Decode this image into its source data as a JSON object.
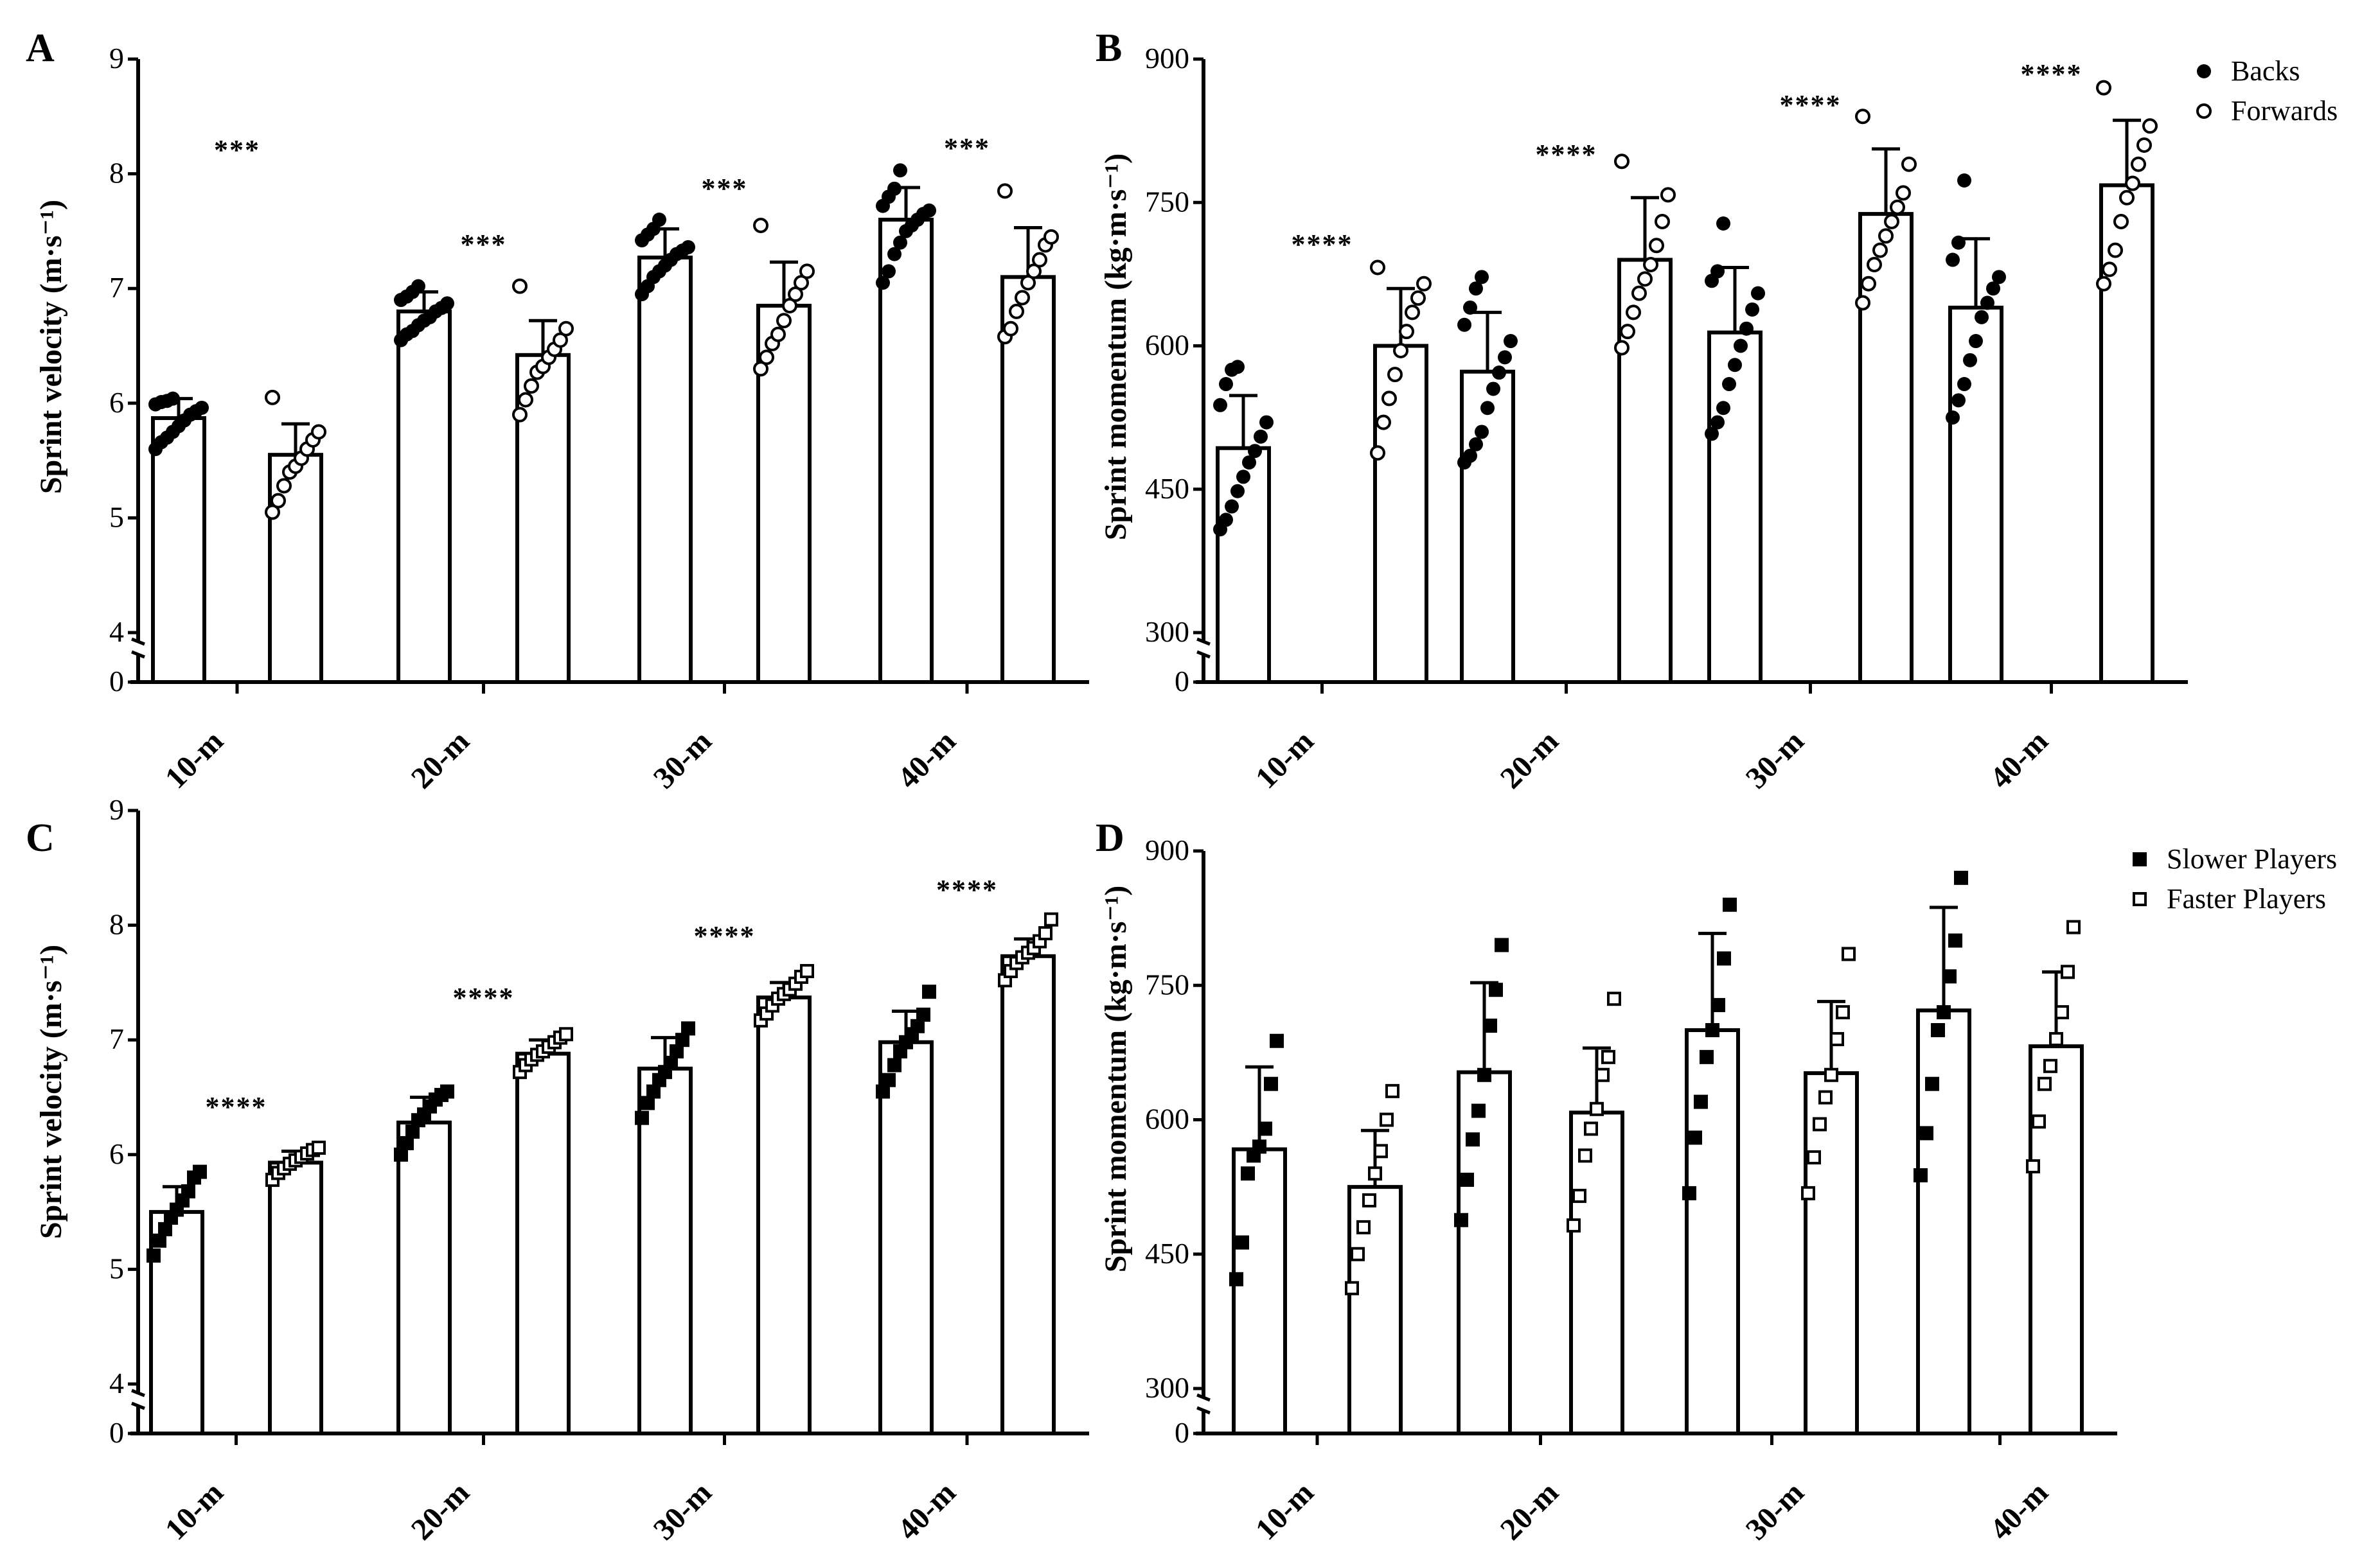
{
  "chart_data": [
    {
      "panel": "A",
      "type": "bar",
      "ylabel": "Sprint velocity (m·s⁻¹)",
      "ylim": [
        4,
        9
      ],
      "y_break": "0 // 4",
      "yticks": [
        "0",
        "4",
        "5",
        "6",
        "7",
        "8",
        "9"
      ],
      "categories": [
        "10-m",
        "20-m",
        "30-m",
        "40-m"
      ],
      "series": [
        {
          "name": "Backs",
          "marker": "filled-circle",
          "values": [
            5.87,
            6.8,
            7.27,
            7.6
          ],
          "sd": [
            0.17,
            0.17,
            0.25,
            0.28
          ],
          "points": [
            [
              5.6,
              5.66,
              5.7,
              5.75,
              5.8,
              5.85,
              5.9,
              5.93,
              5.96,
              5.99,
              6.01,
              6.02,
              6.04
            ],
            [
              6.55,
              6.6,
              6.63,
              6.68,
              6.72,
              6.75,
              6.8,
              6.83,
              6.87,
              6.9,
              6.93,
              6.97,
              7.02
            ],
            [
              6.95,
              7.02,
              7.1,
              7.15,
              7.2,
              7.25,
              7.3,
              7.33,
              7.36,
              7.42,
              7.47,
              7.52,
              7.6
            ],
            [
              7.05,
              7.15,
              7.3,
              7.4,
              7.5,
              7.55,
              7.6,
              7.65,
              7.68,
              7.72,
              7.8,
              7.87,
              8.03
            ]
          ]
        },
        {
          "name": "Forwards",
          "marker": "open-circle",
          "values": [
            5.55,
            6.42,
            6.85,
            7.1
          ],
          "sd": [
            0.27,
            0.3,
            0.38,
            0.43
          ],
          "points": [
            [
              5.05,
              5.15,
              5.28,
              5.4,
              5.45,
              5.52,
              5.6,
              5.68,
              5.75,
              6.05
            ],
            [
              5.9,
              6.03,
              6.15,
              6.27,
              6.32,
              6.4,
              6.47,
              6.55,
              6.65,
              7.02
            ],
            [
              6.3,
              6.4,
              6.52,
              6.6,
              6.72,
              6.85,
              6.95,
              7.05,
              7.15,
              7.55
            ],
            [
              6.58,
              6.65,
              6.8,
              6.92,
              7.05,
              7.15,
              7.25,
              7.38,
              7.45,
              7.85
            ]
          ]
        }
      ],
      "annotations": [
        "***",
        "***",
        "***",
        "***"
      ]
    },
    {
      "panel": "B",
      "type": "bar",
      "ylabel": "Sprint momentum (kg·m·s⁻¹)",
      "ylim": [
        300,
        900
      ],
      "y_break": "0 // 300",
      "yticks": [
        "0",
        "300",
        "450",
        "600",
        "750",
        "900"
      ],
      "categories": [
        "10-m",
        "20-m",
        "30-m",
        "40-m"
      ],
      "series": [
        {
          "name": "Backs",
          "marker": "filled-circle",
          "values": [
            493,
            573,
            614,
            640
          ],
          "sd": [
            55,
            62,
            68,
            72
          ],
          "points": [
            [
              408,
              418,
              432,
              448,
              463,
              478,
              490,
              505,
              520,
              538,
              560,
              575,
              578
            ],
            [
              478,
              485,
              497,
              510,
              535,
              555,
              572,
              588,
              605,
              622,
              640,
              660,
              672
            ],
            [
              508,
              520,
              535,
              560,
              580,
              600,
              618,
              638,
              655,
              668,
              678,
              728
            ],
            [
              525,
              543,
              560,
              585,
              605,
              630,
              645,
              660,
              672,
              690,
              708,
              773
            ]
          ]
        },
        {
          "name": "Forwards",
          "marker": "open-circle",
          "values": [
            600,
            690,
            738,
            768
          ],
          "sd": [
            60,
            65,
            68,
            68
          ],
          "points": [
            [
              488,
              520,
              545,
              570,
              595,
              615,
              635,
              650,
              665,
              682
            ],
            [
              598,
              615,
              635,
              655,
              670,
              685,
              705,
              730,
              758,
              793
            ],
            [
              645,
              665,
              685,
              700,
              715,
              730,
              745,
              760,
              790,
              840
            ],
            [
              665,
              680,
              700,
              730,
              755,
              770,
              790,
              810,
              830,
              870
            ]
          ]
        }
      ],
      "annotations": [
        "****",
        "****",
        "****",
        "****"
      ],
      "legend": {
        "position": "top-right",
        "entries": [
          "Backs",
          "Forwards"
        ]
      }
    },
    {
      "panel": "C",
      "type": "bar",
      "ylabel": "Sprint velocity (m·s⁻¹)",
      "ylim": [
        4,
        9
      ],
      "y_break": "0 // 4",
      "yticks": [
        "0",
        "4",
        "5",
        "6",
        "7",
        "8",
        "9"
      ],
      "categories": [
        "10-m",
        "20-m",
        "30-m",
        "40-m"
      ],
      "series": [
        {
          "name": "Slower Players",
          "marker": "filled-square",
          "values": [
            5.5,
            6.28,
            6.75,
            6.98
          ],
          "sd": [
            0.22,
            0.22,
            0.27,
            0.27
          ],
          "points": [
            [
              5.12,
              5.25,
              5.35,
              5.45,
              5.52,
              5.6,
              5.68,
              5.8,
              5.85
            ],
            [
              6.0,
              6.1,
              6.2,
              6.3,
              6.35,
              6.42,
              6.48,
              6.52,
              6.55
            ],
            [
              6.32,
              6.45,
              6.55,
              6.65,
              6.72,
              6.8,
              6.9,
              7.0,
              7.1
            ],
            [
              6.55,
              6.65,
              6.78,
              6.9,
              6.98,
              7.05,
              7.12,
              7.22,
              7.42
            ]
          ]
        },
        {
          "name": "Faster Players",
          "marker": "open-square",
          "values": [
            5.93,
            6.88,
            7.37,
            7.73
          ],
          "sd": [
            0.1,
            0.12,
            0.13,
            0.15
          ],
          "points": [
            [
              5.78,
              5.84,
              5.88,
              5.92,
              5.95,
              5.98,
              6.01,
              6.04,
              6.06
            ],
            [
              6.72,
              6.78,
              6.83,
              6.87,
              6.9,
              6.94,
              6.98,
              7.02,
              7.05
            ],
            [
              7.17,
              7.23,
              7.3,
              7.36,
              7.4,
              7.44,
              7.49,
              7.55,
              7.6
            ],
            [
              7.52,
              7.6,
              7.67,
              7.72,
              7.76,
              7.8,
              7.86,
              7.93,
              8.05
            ]
          ]
        }
      ],
      "annotations": [
        "****",
        "****",
        "****",
        "****"
      ]
    },
    {
      "panel": "D",
      "type": "bar",
      "ylabel": "Sprint momentum (kg·m·s⁻¹)",
      "ylim": [
        300,
        900
      ],
      "y_break": "0 // 300",
      "yticks": [
        "0",
        "300",
        "450",
        "600",
        "750",
        "900"
      ],
      "categories": [
        "10-m",
        "20-m",
        "30-m",
        "40-m"
      ],
      "series": [
        {
          "name": "Slower Players",
          "marker": "filled-square",
          "values": [
            567,
            653,
            700,
            722
          ],
          "sd": [
            92,
            100,
            108,
            115
          ],
          "points": [
            [
              422,
              463,
              540,
              560,
              570,
              590,
              640,
              688
            ],
            [
              488,
              533,
              578,
              610,
              650,
              705,
              745,
              795
            ],
            [
              518,
              580,
              620,
              670,
              700,
              728,
              780,
              840
            ],
            [
              538,
              585,
              640,
              700,
              720,
              760,
              800,
              870
            ]
          ]
        },
        {
          "name": "Faster Players",
          "marker": "open-square",
          "values": [
            525,
            608,
            652,
            682
          ],
          "sd": [
            63,
            72,
            80,
            83
          ],
          "points": [
            [
              412,
              450,
              480,
              510,
              540,
              565,
              600,
              632
            ],
            [
              482,
              515,
              560,
              590,
              612,
              650,
              670,
              735
            ],
            [
              518,
              558,
              595,
              625,
              650,
              690,
              720,
              785
            ],
            [
              548,
              598,
              640,
              660,
              690,
              720,
              765,
              815
            ]
          ]
        }
      ],
      "legend": {
        "position": "top-right",
        "entries": [
          "Slower Players",
          "Faster Players"
        ]
      }
    }
  ]
}
